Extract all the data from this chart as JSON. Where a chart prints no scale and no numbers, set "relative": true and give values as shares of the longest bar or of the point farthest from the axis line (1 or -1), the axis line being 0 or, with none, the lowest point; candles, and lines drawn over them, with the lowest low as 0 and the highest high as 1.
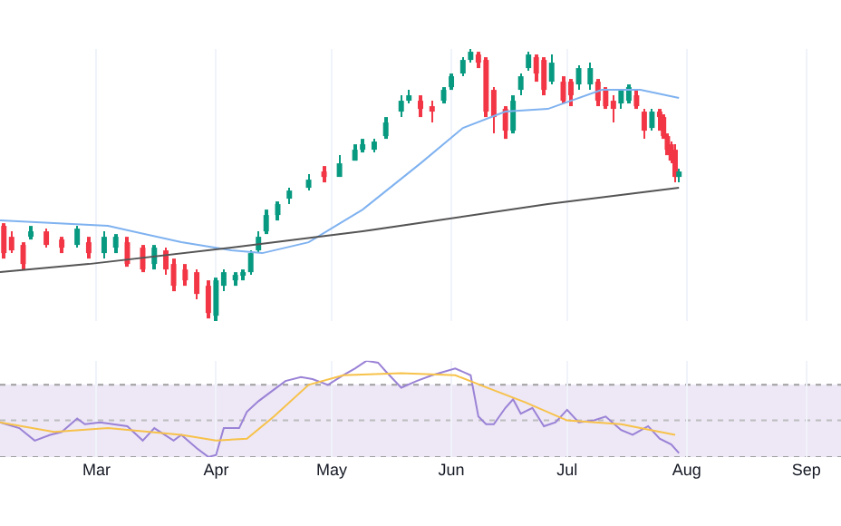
{
  "chart_data": [
    {
      "type": "candlestick",
      "relative": true,
      "colors": [
        "#f23645",
        "#f23645",
        "#f23645",
        "#089981",
        "#f23645",
        "#f23645",
        "#089981",
        "#f23645",
        "#089981",
        "#089981",
        "#f23645",
        "#f23645",
        "#089981",
        "#f23645",
        "#f23645",
        "#f23645",
        "#f23645",
        "#f23645",
        "#089981",
        "#089981",
        "#089981",
        "#089981",
        "#089981",
        "#089981",
        "#089981",
        "#089981",
        "#089981",
        "#089981",
        "#f23645",
        "#089981",
        "#089981",
        "#089981",
        "#089981",
        "#089981",
        "#089981",
        "#089981",
        "#f23645",
        "#f23645",
        "#089981",
        "#089981",
        "#089981",
        "#089981",
        "#f23645",
        "#f23645",
        "#f23645",
        "#f23645",
        "#089981",
        "#089981",
        "#089981",
        "#f23645",
        "#f23645",
        "#089981",
        "#f23645",
        "#f23645",
        "#089981",
        "#089981",
        "#f23645",
        "#f23645",
        "#f23645",
        "#089981",
        "#089981",
        "#f23645",
        "#f23645",
        "#089981",
        "#f23645",
        "#f23645",
        "#f23645",
        "#f23645",
        "#f23645",
        "#089981"
      ],
      "x": [
        "--02-05",
        "--02-07",
        "--02-10",
        "--02-12",
        "--02-16",
        "--02-20",
        "--02-24",
        "--02-27",
        "--03-03",
        "--03-06",
        "--03-09",
        "--03-13",
        "--03-16",
        "--03-19",
        "--03-21",
        "--03-24",
        "--03-27",
        "--03-30",
        "--04-01",
        "--04-03",
        "--04-06",
        "--04-08",
        "--04-10",
        "--04-12",
        "--04-14",
        "--04-17",
        "--04-20",
        "--04-25",
        "--04-29",
        "--05-03",
        "--05-07",
        "--05-09",
        "--05-12",
        "--05-15",
        "--05-19",
        "--05-21",
        "--05-24",
        "--05-27",
        "--05-30",
        "--06-01",
        "--06-04",
        "--06-06",
        "--06-08",
        "--06-10",
        "--06-12",
        "--06-15",
        "--06-17",
        "--06-19",
        "--06-21",
        "--06-23",
        "--06-25",
        "--06-27",
        "--06-30",
        "--07-02",
        "--07-04",
        "--07-07",
        "--07-09",
        "--07-11",
        "--07-13",
        "--07-15",
        "--07-17",
        "--07-19",
        "--07-21",
        "--07-23",
        "--07-25",
        "--07-26",
        "--07-27",
        "--07-28",
        "--07-29",
        "--07-30"
      ],
      "ohlc": [
        [
          0.35,
          0.36,
          0.23,
          0.25
        ],
        [
          0.31,
          0.33,
          0.25,
          0.26
        ],
        [
          0.28,
          0.29,
          0.19,
          0.21
        ],
        [
          0.31,
          0.35,
          0.3,
          0.33
        ],
        [
          0.33,
          0.34,
          0.27,
          0.28
        ],
        [
          0.3,
          0.31,
          0.25,
          0.27
        ],
        [
          0.28,
          0.35,
          0.27,
          0.34
        ],
        [
          0.29,
          0.31,
          0.23,
          0.25
        ],
        [
          0.25,
          0.33,
          0.23,
          0.31
        ],
        [
          0.27,
          0.32,
          0.25,
          0.31
        ],
        [
          0.29,
          0.31,
          0.2,
          0.21
        ],
        [
          0.27,
          0.28,
          0.18,
          0.19
        ],
        [
          0.21,
          0.28,
          0.19,
          0.27
        ],
        [
          0.26,
          0.27,
          0.17,
          0.19
        ],
        [
          0.21,
          0.23,
          0.11,
          0.13
        ],
        [
          0.19,
          0.21,
          0.13,
          0.15
        ],
        [
          0.18,
          0.19,
          0.08,
          0.1
        ],
        [
          0.13,
          0.15,
          0.01,
          0.03
        ],
        [
          0.02,
          0.16,
          0,
          0.15
        ],
        [
          0.13,
          0.19,
          0.11,
          0.18
        ],
        [
          0.15,
          0.18,
          0.13,
          0.17
        ],
        [
          0.17,
          0.19,
          0.15,
          0.18
        ],
        [
          0.18,
          0.26,
          0.17,
          0.25
        ],
        [
          0.26,
          0.33,
          0.25,
          0.31
        ],
        [
          0.33,
          0.41,
          0.32,
          0.39
        ],
        [
          0.39,
          0.44,
          0.37,
          0.43
        ],
        [
          0.45,
          0.49,
          0.43,
          0.48
        ],
        [
          0.49,
          0.54,
          0.48,
          0.52
        ],
        [
          0.55,
          0.57,
          0.51,
          0.53
        ],
        [
          0.53,
          0.61,
          0.53,
          0.58
        ],
        [
          0.59,
          0.65,
          0.59,
          0.63
        ],
        [
          0.63,
          0.67,
          0.62,
          0.65
        ],
        [
          0.63,
          0.67,
          0.62,
          0.66
        ],
        [
          0.68,
          0.75,
          0.67,
          0.73
        ],
        [
          0.77,
          0.83,
          0.75,
          0.81
        ],
        [
          0.81,
          0.85,
          0.8,
          0.83
        ],
        [
          0.81,
          0.83,
          0.75,
          0.78
        ],
        [
          0.79,
          0.81,
          0.73,
          0.77
        ],
        [
          0.81,
          0.86,
          0.8,
          0.85
        ],
        [
          0.86,
          0.91,
          0.85,
          0.9
        ],
        [
          0.91,
          0.97,
          0.9,
          0.96
        ],
        [
          0.96,
          1,
          0.95,
          0.99
        ],
        [
          0.98,
          0.99,
          0.93,
          0.95
        ],
        [
          0.96,
          0.97,
          0.75,
          0.77
        ],
        [
          0.85,
          0.86,
          0.69,
          0.75
        ],
        [
          0.78,
          0.79,
          0.67,
          0.7
        ],
        [
          0.7,
          0.83,
          0.69,
          0.81
        ],
        [
          0.85,
          0.91,
          0.83,
          0.9
        ],
        [
          0.93,
          0.99,
          0.92,
          0.98
        ],
        [
          0.97,
          0.98,
          0.88,
          0.91
        ],
        [
          0.96,
          0.97,
          0.83,
          0.85
        ],
        [
          0.88,
          0.98,
          0.87,
          0.95
        ],
        [
          0.88,
          0.9,
          0.8,
          0.81
        ],
        [
          0.88,
          0.89,
          0.79,
          0.83
        ],
        [
          0.87,
          0.94,
          0.85,
          0.93
        ],
        [
          0.87,
          0.95,
          0.85,
          0.93
        ],
        [
          0.88,
          0.89,
          0.79,
          0.81
        ],
        [
          0.85,
          0.86,
          0.78,
          0.79
        ],
        [
          0.81,
          0.83,
          0.73,
          0.78
        ],
        [
          0.8,
          0.85,
          0.78,
          0.85
        ],
        [
          0.81,
          0.87,
          0.8,
          0.86
        ],
        [
          0.83,
          0.85,
          0.78,
          0.79
        ],
        [
          0.77,
          0.78,
          0.67,
          0.7
        ],
        [
          0.71,
          0.78,
          0.7,
          0.77
        ],
        [
          0.77,
          0.78,
          0.7,
          0.75
        ],
        [
          0.75,
          0.76,
          0.67,
          0.68
        ],
        [
          0.68,
          0.69,
          0.61,
          0.63
        ],
        [
          0.65,
          0.66,
          0.58,
          0.59
        ],
        [
          0.63,
          0.65,
          0.51,
          0.53
        ],
        [
          0.53,
          0.56,
          0.51,
          0.55
        ]
      ],
      "series": [
        {
          "type": "line",
          "color": "#7fb2f0",
          "x": [
            "--02-04",
            "--03-04",
            "--03-23",
            "--04-05",
            "--04-13",
            "--04-25",
            "--05-09",
            "--05-24",
            "--06-04",
            "--06-15",
            "--06-26",
            "--07-10",
            "--07-20",
            "--07-30"
          ],
          "values": [
            0.37,
            0.35,
            0.29,
            0.26,
            0.25,
            0.29,
            0.41,
            0.58,
            0.71,
            0.77,
            0.78,
            0.85,
            0.85,
            0.82
          ]
        },
        {
          "type": "line",
          "color": "#555555",
          "x": [
            "--02-04",
            "--02-27",
            "--04-05",
            "--05-09",
            "--06-26",
            "--07-30"
          ],
          "values": [
            0.18,
            0.21,
            0.27,
            0.33,
            0.43,
            0.49
          ]
        }
      ],
      "xlim": [
        "--02-04",
        "--09-10"
      ],
      "xticks": [
        {
          "value": "--03-01",
          "label": "Mar"
        },
        {
          "value": "--04-01",
          "label": "Apr"
        },
        {
          "value": "--05-01",
          "label": "May"
        },
        {
          "value": "--06-01",
          "label": "Jun"
        },
        {
          "value": "--07-01",
          "label": "Jul"
        },
        {
          "value": "--08-01",
          "label": "Aug"
        },
        {
          "value": "--09-01",
          "label": "Sep"
        }
      ],
      "grid": "x",
      "tick_labels": false
    },
    {
      "type": "line",
      "relative": true,
      "series": [
        {
          "color": "#9a82d6",
          "x": [
            "--02-04",
            "--02-09",
            "--02-13",
            "--02-17",
            "--02-20",
            "--02-24",
            "--02-26",
            "--03-02",
            "--03-09",
            "--03-13",
            "--03-16",
            "--03-21",
            "--03-23",
            "--03-27",
            "--03-30",
            "--04-01",
            "--04-03",
            "--04-07",
            "--04-09",
            "--04-12",
            "--04-16",
            "--04-19",
            "--04-23",
            "--04-26",
            "--04-30",
            "--05-04",
            "--05-07",
            "--05-10",
            "--05-13",
            "--05-15",
            "--05-19",
            "--05-23",
            "--05-27",
            "--06-02",
            "--06-06",
            "--06-08",
            "--06-10",
            "--06-12",
            "--06-15",
            "--06-17",
            "--06-19",
            "--06-22",
            "--06-25",
            "--06-28",
            "--07-01",
            "--07-04",
            "--07-08",
            "--07-11",
            "--07-15",
            "--07-18",
            "--07-22",
            "--07-25",
            "--07-28",
            "--07-30"
          ],
          "values": [
            0.36,
            0.3,
            0.17,
            0.23,
            0.26,
            0.4,
            0.34,
            0.36,
            0.32,
            0.17,
            0.3,
            0.17,
            0.23,
            0.09,
            0,
            0.02,
            0.3,
            0.3,
            0.47,
            0.58,
            0.7,
            0.79,
            0.83,
            0.81,
            0.75,
            0.85,
            0.92,
            1,
            0.98,
            0.89,
            0.72,
            0.79,
            0.85,
            0.92,
            0.85,
            0.42,
            0.34,
            0.34,
            0.51,
            0.6,
            0.45,
            0.51,
            0.32,
            0.36,
            0.49,
            0.36,
            0.38,
            0.42,
            0.28,
            0.23,
            0.32,
            0.19,
            0.13,
            0.04
          ]
        },
        {
          "color": "#f7c24a",
          "x": [
            "--02-04",
            "--02-18",
            "--03-04",
            "--03-23",
            "--04-01",
            "--04-09",
            "--04-16",
            "--04-25",
            "--05-04",
            "--05-19",
            "--06-02",
            "--06-09",
            "--06-20",
            "--07-01",
            "--07-15",
            "--07-29"
          ],
          "values": [
            0.36,
            0.26,
            0.3,
            0.23,
            0.17,
            0.19,
            0.42,
            0.75,
            0.85,
            0.87,
            0.85,
            0.74,
            0.57,
            0.38,
            0.34,
            0.23
          ]
        }
      ],
      "bands": [
        {
          "axis": "y",
          "from": 0,
          "to": 0.75,
          "color": "#ede7f6"
        }
      ],
      "ref_lines": [
        {
          "axis": "y",
          "value": 0.75,
          "color": "#9e9e9e",
          "line_style": "dotted"
        },
        {
          "axis": "y",
          "value": 0.38,
          "color": "#bdbdbd",
          "line_style": "dotted"
        },
        {
          "axis": "y",
          "value": 0,
          "color": "#9e9e9e",
          "line_style": "dotted"
        }
      ],
      "xlim": [
        "--02-04",
        "--09-10"
      ],
      "xticks": [
        {
          "value": "--03-01",
          "label": "Mar"
        },
        {
          "value": "--04-01",
          "label": "Apr"
        },
        {
          "value": "--05-01",
          "label": "May"
        },
        {
          "value": "--06-01",
          "label": "Jun"
        },
        {
          "value": "--07-01",
          "label": "Jul"
        },
        {
          "value": "--08-01",
          "label": "Aug"
        },
        {
          "value": "--09-01",
          "label": "Sep"
        }
      ],
      "grid": "x",
      "tick_labels": "x"
    }
  ]
}
